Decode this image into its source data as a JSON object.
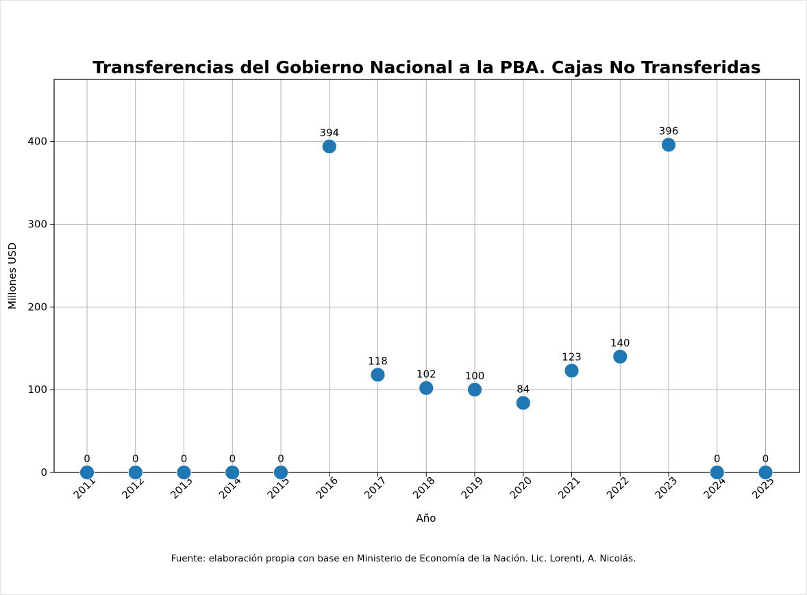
{
  "chart_data": {
    "type": "scatter",
    "title": "Transferencias del Gobierno Nacional a la PBA. Cajas No Transferidas",
    "xlabel": "Año",
    "ylabel": "Millones USD",
    "x": [
      "2011",
      "2012",
      "2013",
      "2014",
      "2015",
      "2016",
      "2017",
      "2018",
      "2019",
      "2020",
      "2021",
      "2022",
      "2023",
      "2024",
      "2025"
    ],
    "values": [
      0,
      0,
      0,
      0,
      0,
      394,
      118,
      102,
      100,
      84,
      123,
      140,
      396,
      0,
      0
    ],
    "data_labels": [
      "0",
      "0",
      "0",
      "0",
      "0",
      "394",
      "118",
      "102",
      "100",
      "84",
      "123",
      "140",
      "396",
      "0",
      "0"
    ],
    "yticks": [
      0,
      100,
      200,
      300,
      400
    ],
    "ylim": [
      0,
      475
    ],
    "grid": true,
    "color": "#1f77b4"
  },
  "footer": "Fuente: elaboración propia con base en Ministerio de Economía de la Nación. Lic. Lorenti, A. Nicolás."
}
